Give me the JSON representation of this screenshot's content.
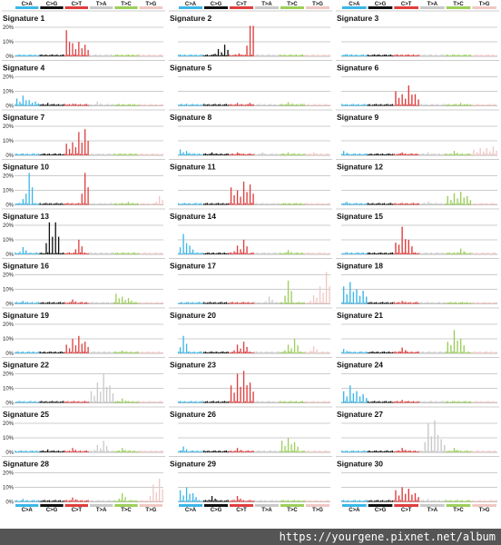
{
  "chart_data": {
    "type": "bar",
    "categories": [
      "C>A",
      "C>G",
      "C>T",
      "T>A",
      "T>C",
      "T>G"
    ],
    "colors": {
      "C>A": "#3bb7e8",
      "C>G": "#111111",
      "C>T": "#e03d3d",
      "T>A": "#c9c9c9",
      "T>C": "#9ccf5a",
      "T>G": "#f0c7c4"
    },
    "ylim": [
      0,
      20
    ],
    "yticks": [
      "0%",
      "10%",
      "20%"
    ],
    "bars_per_category": 16,
    "grid": true,
    "panels": [
      {
        "title": "Signature 1",
        "yticks_shown": true,
        "peaks": [
          [
            2,
            1,
            18
          ],
          [
            2,
            5,
            9
          ],
          [
            2,
            9,
            10
          ],
          [
            2,
            13,
            8
          ],
          [
            4,
            5,
            1
          ]
        ]
      },
      {
        "title": "Signature 2",
        "yticks_shown": false,
        "peaks": [
          [
            1,
            9,
            5
          ],
          [
            1,
            13,
            8
          ],
          [
            2,
            6,
            2
          ],
          [
            2,
            13,
            21
          ],
          [
            2,
            15,
            21
          ]
        ]
      },
      {
        "title": "Signature 3",
        "yticks_shown": false,
        "peaks": [
          [
            0,
            3,
            1.5
          ],
          [
            1,
            6,
            1.2
          ],
          [
            2,
            7,
            1
          ],
          [
            3,
            5,
            1
          ],
          [
            4,
            5,
            1
          ],
          [
            5,
            5,
            1
          ]
        ]
      },
      {
        "title": "Signature 4",
        "yticks_shown": true,
        "peaks": [
          [
            0,
            1,
            5
          ],
          [
            0,
            5,
            7
          ],
          [
            0,
            9,
            4
          ],
          [
            0,
            13,
            3
          ],
          [
            1,
            5,
            2
          ],
          [
            2,
            5,
            1.5
          ],
          [
            3,
            5,
            3
          ]
        ]
      },
      {
        "title": "Signature 5",
        "yticks_shown": false,
        "peaks": [
          [
            0,
            5,
            1.5
          ],
          [
            2,
            5,
            2
          ],
          [
            2,
            13,
            2
          ],
          [
            4,
            5,
            2.5
          ],
          [
            4,
            13,
            1.5
          ]
        ]
      },
      {
        "title": "Signature 6",
        "yticks_shown": false,
        "peaks": [
          [
            2,
            1,
            10
          ],
          [
            2,
            5,
            8
          ],
          [
            2,
            9,
            14
          ],
          [
            2,
            13,
            8
          ],
          [
            4,
            9,
            2
          ]
        ]
      },
      {
        "title": "Signature 7",
        "yticks_shown": true,
        "peaks": [
          [
            2,
            1,
            8
          ],
          [
            2,
            5,
            9
          ],
          [
            2,
            9,
            16
          ],
          [
            2,
            13,
            18
          ],
          [
            2,
            15,
            10
          ]
        ]
      },
      {
        "title": "Signature 8",
        "yticks_shown": false,
        "peaks": [
          [
            0,
            1,
            4
          ],
          [
            0,
            5,
            3
          ],
          [
            1,
            5,
            2
          ],
          [
            2,
            5,
            2
          ],
          [
            3,
            5,
            2
          ],
          [
            4,
            5,
            2
          ],
          [
            5,
            5,
            2
          ]
        ]
      },
      {
        "title": "Signature 9",
        "yticks_shown": false,
        "peaks": [
          [
            0,
            1,
            3
          ],
          [
            2,
            5,
            2
          ],
          [
            3,
            5,
            2
          ],
          [
            4,
            5,
            3
          ],
          [
            5,
            1,
            4
          ],
          [
            5,
            5,
            5
          ],
          [
            5,
            9,
            5
          ],
          [
            5,
            13,
            6
          ]
        ]
      },
      {
        "title": "Signature 10",
        "yticks_shown": true,
        "peaks": [
          [
            0,
            5,
            4
          ],
          [
            0,
            9,
            22
          ],
          [
            2,
            13,
            22
          ],
          [
            4,
            9,
            2
          ],
          [
            5,
            13,
            6
          ]
        ]
      },
      {
        "title": "Signature 11",
        "yticks_shown": false,
        "peaks": [
          [
            2,
            1,
            12
          ],
          [
            2,
            5,
            10
          ],
          [
            2,
            9,
            16
          ],
          [
            2,
            13,
            14
          ]
        ]
      },
      {
        "title": "Signature 12",
        "yticks_shown": false,
        "peaks": [
          [
            0,
            3,
            2
          ],
          [
            3,
            5,
            2
          ],
          [
            4,
            1,
            6
          ],
          [
            4,
            5,
            8
          ],
          [
            4,
            9,
            9
          ],
          [
            4,
            13,
            6
          ]
        ]
      },
      {
        "title": "Signature 13",
        "yticks_shown": true,
        "peaks": [
          [
            0,
            5,
            5
          ],
          [
            1,
            6,
            22
          ],
          [
            1,
            10,
            22
          ],
          [
            2,
            9,
            10
          ]
        ]
      },
      {
        "title": "Signature 14",
        "yticks_shown": false,
        "peaks": [
          [
            0,
            3,
            14
          ],
          [
            0,
            7,
            6
          ],
          [
            2,
            5,
            6
          ],
          [
            2,
            9,
            10
          ],
          [
            4,
            5,
            3
          ]
        ]
      },
      {
        "title": "Signature 15",
        "yticks_shown": false,
        "peaks": [
          [
            0,
            3,
            1.5
          ],
          [
            2,
            1,
            8
          ],
          [
            2,
            5,
            19
          ],
          [
            2,
            9,
            10
          ],
          [
            4,
            9,
            4
          ]
        ]
      },
      {
        "title": "Signature 16",
        "yticks_shown": true,
        "peaks": [
          [
            0,
            5,
            2
          ],
          [
            2,
            5,
            3
          ],
          [
            4,
            1,
            7
          ],
          [
            4,
            5,
            5
          ],
          [
            4,
            9,
            4
          ]
        ]
      },
      {
        "title": "Signature 17",
        "yticks_shown": false,
        "peaks": [
          [
            3,
            9,
            5
          ],
          [
            4,
            5,
            16
          ],
          [
            5,
            5,
            6
          ],
          [
            5,
            9,
            12
          ],
          [
            5,
            13,
            22
          ]
        ]
      },
      {
        "title": "Signature 18",
        "yticks_shown": false,
        "peaks": [
          [
            0,
            1,
            12
          ],
          [
            0,
            5,
            15
          ],
          [
            0,
            9,
            10
          ],
          [
            0,
            13,
            9
          ],
          [
            2,
            5,
            2
          ]
        ]
      },
      {
        "title": "Signature 19",
        "yticks_shown": true,
        "peaks": [
          [
            2,
            1,
            6
          ],
          [
            2,
            5,
            10
          ],
          [
            2,
            9,
            12
          ],
          [
            2,
            13,
            8
          ],
          [
            4,
            5,
            2
          ]
        ]
      },
      {
        "title": "Signature 20",
        "yticks_shown": false,
        "peaks": [
          [
            0,
            3,
            12
          ],
          [
            2,
            5,
            6
          ],
          [
            2,
            9,
            8
          ],
          [
            4,
            5,
            6
          ],
          [
            4,
            9,
            10
          ],
          [
            5,
            5,
            5
          ]
        ]
      },
      {
        "title": "Signature 21",
        "yticks_shown": false,
        "peaks": [
          [
            0,
            1,
            3
          ],
          [
            2,
            5,
            4
          ],
          [
            4,
            1,
            8
          ],
          [
            4,
            5,
            16
          ],
          [
            4,
            9,
            10
          ]
        ]
      },
      {
        "title": "Signature 22",
        "yticks_shown": true,
        "peaks": [
          [
            3,
            1,
            8
          ],
          [
            3,
            5,
            14
          ],
          [
            3,
            9,
            20
          ],
          [
            3,
            13,
            12
          ],
          [
            4,
            5,
            3
          ]
        ]
      },
      {
        "title": "Signature 23",
        "yticks_shown": false,
        "peaks": [
          [
            2,
            1,
            12
          ],
          [
            2,
            5,
            20
          ],
          [
            2,
            9,
            22
          ],
          [
            2,
            13,
            14
          ]
        ]
      },
      {
        "title": "Signature 24",
        "yticks_shown": false,
        "peaks": [
          [
            0,
            1,
            8
          ],
          [
            0,
            5,
            12
          ],
          [
            0,
            9,
            8
          ],
          [
            0,
            13,
            6
          ],
          [
            2,
            5,
            2
          ]
        ]
      },
      {
        "title": "Signature 25",
        "yticks_shown": true,
        "peaks": [
          [
            1,
            5,
            2
          ],
          [
            2,
            5,
            3
          ],
          [
            3,
            5,
            5
          ],
          [
            3,
            9,
            8
          ],
          [
            4,
            5,
            3
          ]
        ]
      },
      {
        "title": "Signature 26",
        "yticks_shown": false,
        "peaks": [
          [
            0,
            3,
            4
          ],
          [
            2,
            5,
            3
          ],
          [
            4,
            1,
            8
          ],
          [
            4,
            5,
            10
          ],
          [
            4,
            9,
            7
          ]
        ]
      },
      {
        "title": "Signature 27",
        "yticks_shown": false,
        "peaks": [
          [
            2,
            5,
            3
          ],
          [
            3,
            5,
            20
          ],
          [
            3,
            9,
            22
          ],
          [
            3,
            13,
            9
          ],
          [
            4,
            5,
            3
          ]
        ]
      },
      {
        "title": "Signature 28",
        "yticks_shown": true,
        "peaks": [
          [
            0,
            5,
            2
          ],
          [
            2,
            5,
            3
          ],
          [
            4,
            5,
            6
          ],
          [
            5,
            9,
            12
          ],
          [
            5,
            13,
            16
          ]
        ]
      },
      {
        "title": "Signature 29",
        "yticks_shown": false,
        "peaks": [
          [
            0,
            1,
            8
          ],
          [
            0,
            5,
            10
          ],
          [
            0,
            9,
            6
          ],
          [
            1,
            5,
            4
          ],
          [
            2,
            5,
            4
          ]
        ]
      },
      {
        "title": "Signature 30",
        "yticks_shown": false,
        "peaks": [
          [
            2,
            1,
            8
          ],
          [
            2,
            5,
            10
          ],
          [
            2,
            9,
            9
          ],
          [
            2,
            13,
            6
          ],
          [
            3,
            5,
            2
          ]
        ]
      }
    ]
  },
  "footer": {
    "watermark_url": "https://yourgene.pixnet.net/album"
  }
}
